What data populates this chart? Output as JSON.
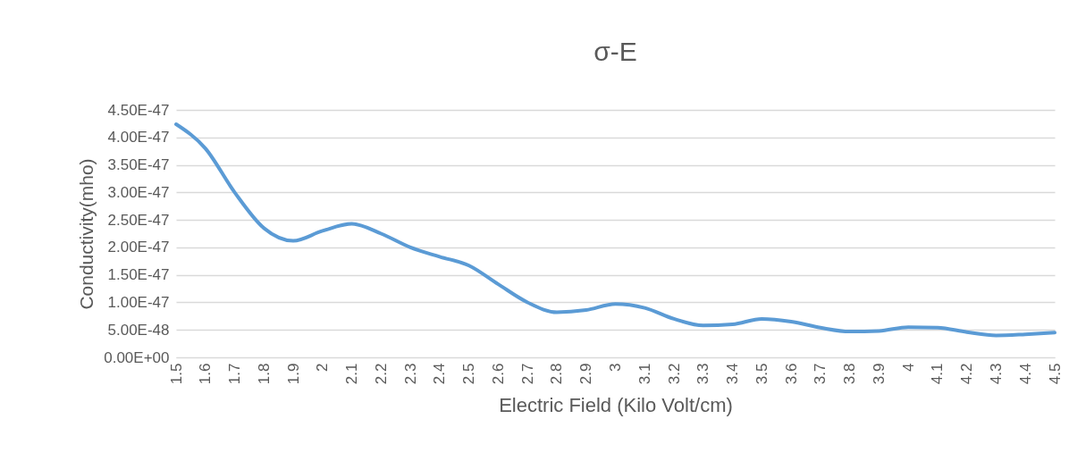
{
  "chart_data": {
    "type": "line",
    "title": "σ-E",
    "xlabel": "Electric Field (Kilo Volt/cm)",
    "ylabel": "Conductivity(mho)",
    "categories": [
      "1.5",
      "1.6",
      "1.7",
      "1.8",
      "1.9",
      "2",
      "2.1",
      "2.2",
      "2.3",
      "2.4",
      "2.5",
      "2.6",
      "2.7",
      "2.8",
      "2.9",
      "3",
      "3.1",
      "3.2",
      "3.3",
      "3.4",
      "3.5",
      "3.6",
      "3.7",
      "3.8",
      "3.9",
      "4",
      "4.1",
      "4.2",
      "4.3",
      "4.4",
      "4.5"
    ],
    "series": [
      {
        "color": "#5b9bd5",
        "values": [
          4.24e-47,
          3.8e-47,
          3e-47,
          2.35e-47,
          2.12e-47,
          2.3e-47,
          2.43e-47,
          2.25e-47,
          2e-47,
          1.83e-47,
          1.67e-47,
          1.33e-47,
          1e-47,
          8.2e-48,
          8.6e-48,
          9.7e-48,
          9e-48,
          7e-48,
          5.8e-48,
          6e-48,
          7e-48,
          6.5e-48,
          5.4e-48,
          4.7e-48,
          4.8e-48,
          5.5e-48,
          5.4e-48,
          4.6e-48,
          4e-48,
          4.2e-48,
          4.5e-48
        ]
      }
    ],
    "ylim": [
      0,
      4.5e-47
    ],
    "yticks": [
      {
        "value": 0,
        "label": "0.00E+00"
      },
      {
        "value": 5e-48,
        "label": "5.00E-48"
      },
      {
        "value": 1e-47,
        "label": "1.00E-47"
      },
      {
        "value": 1.5e-47,
        "label": "1.50E-47"
      },
      {
        "value": 2e-47,
        "label": "2.00E-47"
      },
      {
        "value": 2.5e-47,
        "label": "2.50E-47"
      },
      {
        "value": 3e-47,
        "label": "3.00E-47"
      },
      {
        "value": 3.5e-47,
        "label": "3.50E-47"
      },
      {
        "value": 4e-47,
        "label": "4.00E-47"
      },
      {
        "value": 4.5e-47,
        "label": "4.50E-47"
      }
    ],
    "grid": "y",
    "marker": "none",
    "line_style": "solid"
  }
}
